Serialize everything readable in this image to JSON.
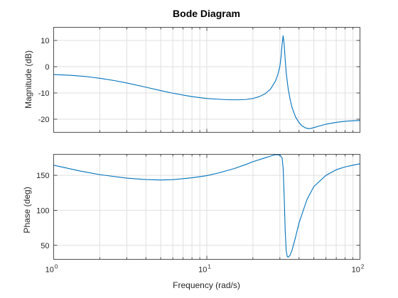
{
  "chart_data": [
    {
      "type": "line",
      "title": "Bode Diagram",
      "xlabel": "Frequency (rad/s)",
      "ylabel": "Magnitude (dB)",
      "xscale": "log",
      "xlim": [
        1,
        100
      ],
      "ylim": [
        -25,
        15
      ],
      "grid": true,
      "x_ticks": [
        1,
        10,
        100
      ],
      "y_ticks": [
        {
          "value": 10,
          "label": "10"
        },
        {
          "value": 0,
          "label": "0"
        },
        {
          "value": -10,
          "label": "-10"
        },
        {
          "value": -20,
          "label": "-20"
        }
      ],
      "series": [
        {
          "color": "#0072bd",
          "x": [
            1,
            1.3,
            1.6,
            2,
            2.5,
            3,
            4,
            5,
            6,
            8,
            10,
            12,
            14,
            16,
            18,
            20,
            22,
            24,
            26,
            28,
            29,
            30,
            30.5,
            31,
            31.5,
            32,
            32.5,
            33,
            34,
            35,
            36,
            38,
            40,
            42,
            44,
            46,
            48,
            50,
            55,
            60,
            70,
            80,
            90,
            100
          ],
          "y": [
            -3,
            -3.3,
            -3.7,
            -4.4,
            -5.3,
            -6.2,
            -7.8,
            -9.1,
            -10.1,
            -11.4,
            -12.1,
            -12.4,
            -12.6,
            -12.6,
            -12.5,
            -12.1,
            -11.4,
            -10.3,
            -8.6,
            -5.6,
            -3.3,
            0.2,
            3.5,
            8.5,
            11.8,
            8.5,
            2.5,
            -2.5,
            -8.5,
            -12.5,
            -15.5,
            -19.2,
            -21.3,
            -22.6,
            -23.3,
            -23.6,
            -23.5,
            -23.2,
            -22.5,
            -21.9,
            -21.2,
            -20.8,
            -20.6,
            -20.5
          ]
        }
      ]
    },
    {
      "type": "line",
      "xlabel": "Frequency (rad/s)",
      "ylabel": "Phase (deg)",
      "xscale": "log",
      "xlim": [
        1,
        100
      ],
      "ylim": [
        30,
        180
      ],
      "grid": true,
      "x_ticks": [
        1,
        10,
        100
      ],
      "y_ticks": [
        {
          "value": 150,
          "label": "150"
        },
        {
          "value": 100,
          "label": "100"
        },
        {
          "value": 50,
          "label": "50"
        }
      ],
      "series": [
        {
          "color": "#0072bd",
          "x": [
            1,
            1.5,
            2,
            3,
            4,
            5,
            6,
            8,
            10,
            12,
            15,
            18,
            20,
            24,
            28,
            30,
            31,
            31.5,
            32,
            32.5,
            33,
            33.5,
            34,
            35,
            36,
            38,
            40,
            45,
            50,
            60,
            70,
            80,
            90,
            100
          ],
          "y": [
            164.5,
            156,
            151,
            146,
            144,
            143.3,
            143.8,
            146.5,
            149.5,
            153.5,
            159.5,
            165.5,
            169.5,
            175,
            179.5,
            179,
            175,
            160,
            120,
            70,
            42,
            34,
            33,
            36,
            43,
            62,
            82,
            115,
            134,
            150,
            158,
            162,
            164.5,
            166.5
          ]
        }
      ]
    }
  ]
}
